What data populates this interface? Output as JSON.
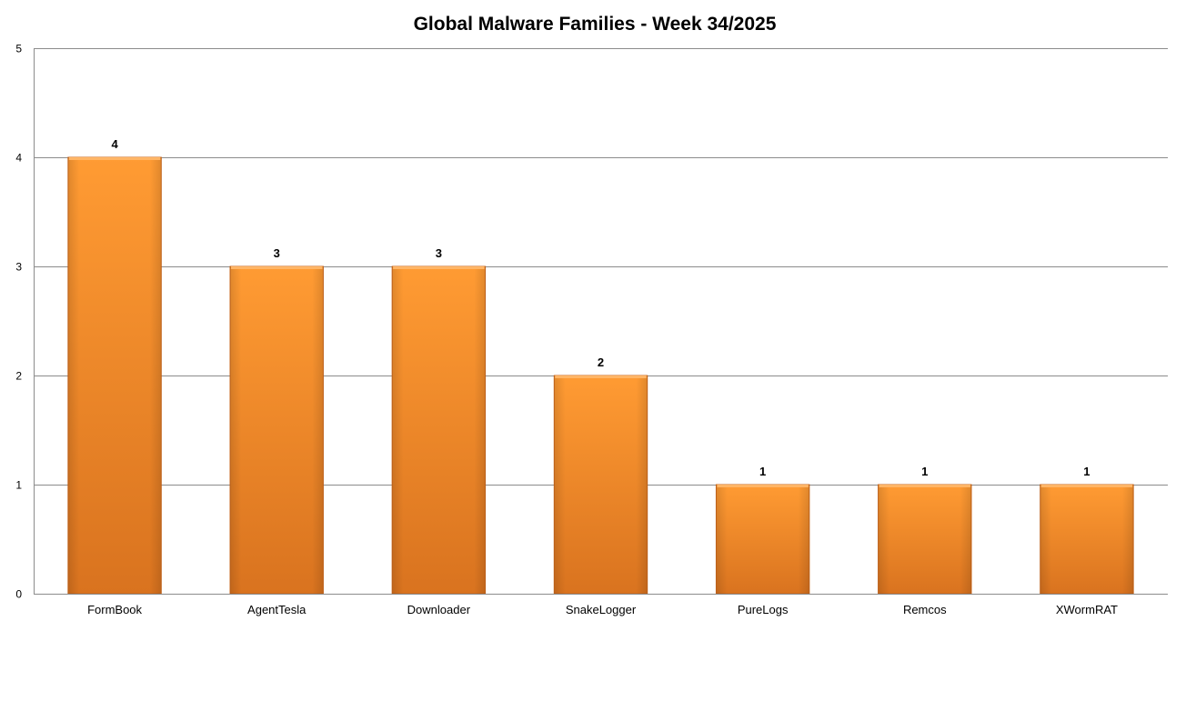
{
  "chart_data": {
    "type": "bar",
    "title": "Global Malware Families - Week 34/2025",
    "xlabel": "",
    "ylabel": "",
    "categories": [
      "FormBook",
      "AgentTesla",
      "Downloader",
      "SnakeLogger",
      "PureLogs",
      "Remcos",
      "XWormRAT"
    ],
    "values": [
      4,
      3,
      3,
      2,
      1,
      1,
      1
    ],
    "ylim": [
      0,
      5
    ],
    "yticks": [
      0,
      1,
      2,
      3,
      4,
      5
    ],
    "grid": true,
    "legend": "none",
    "data_labels": true,
    "colors": {
      "bar_light": "#ff9b33",
      "bar_dark": "#d9731f",
      "bar_edge": "#c8651a",
      "bar_top": "#ffb566",
      "gridline": "#8c8c8c",
      "axis": "#8c8c8c"
    }
  }
}
